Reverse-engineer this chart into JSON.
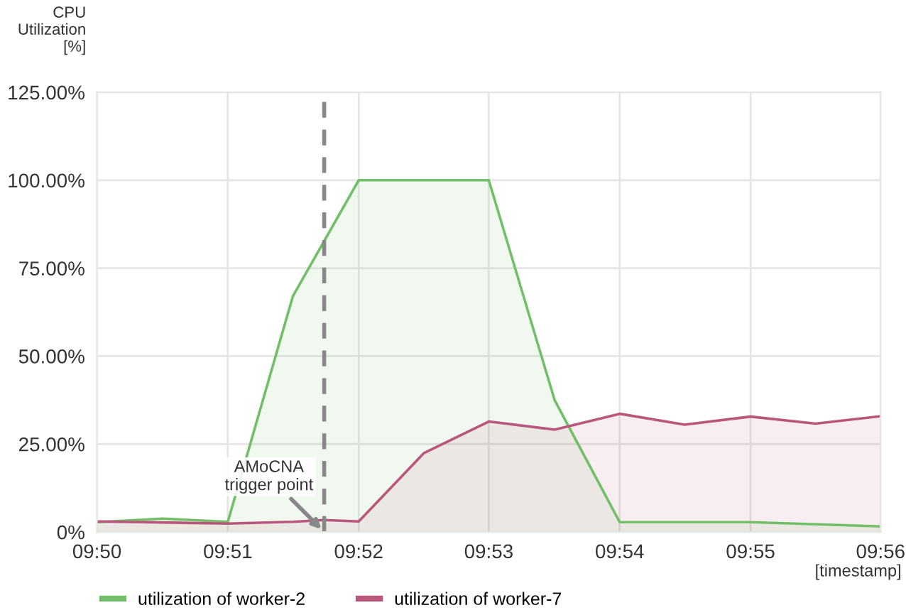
{
  "chart_data": {
    "type": "area",
    "ylabel": "CPU\nUtilization\n[%]",
    "xlabel": "[timestamp]",
    "xlim": [
      9.8333,
      9.9333
    ],
    "xticks": [
      {
        "value": 9.8333,
        "label": "09:50"
      },
      {
        "value": 9.85,
        "label": "09:51"
      },
      {
        "value": 9.8667,
        "label": "09:52"
      },
      {
        "value": 9.8833,
        "label": "09:53"
      },
      {
        "value": 9.9,
        "label": "09:54"
      },
      {
        "value": 9.9167,
        "label": "09:55"
      },
      {
        "value": 9.9333,
        "label": "09:56"
      }
    ],
    "ylim": [
      0,
      125
    ],
    "yticks": [
      {
        "value": 0,
        "label": "0%"
      },
      {
        "value": 25,
        "label": "25.00%"
      },
      {
        "value": 50,
        "label": "50.00%"
      },
      {
        "value": 75,
        "label": "75.00%"
      },
      {
        "value": 100,
        "label": "100.00%"
      },
      {
        "value": 125,
        "label": "125.00%"
      }
    ],
    "grid": true,
    "legend": "bottom",
    "series": [
      {
        "name": "utilization of worker-2",
        "color": "#73bf69",
        "x": [
          9.8333,
          9.8417,
          9.85,
          9.8583,
          9.8667,
          9.8833,
          9.8917,
          9.9,
          9.9167,
          9.9333
        ],
        "values": [
          2.8,
          3.8,
          2.9,
          67,
          100,
          100,
          37.5,
          2.8,
          2.8,
          1.6
        ]
      },
      {
        "name": "utilization of worker-7",
        "color": "#b8577a",
        "x": [
          9.8333,
          9.85,
          9.8583,
          9.8623,
          9.8667,
          9.875,
          9.8833,
          9.8917,
          9.9,
          9.9083,
          9.9167,
          9.925,
          9.9333
        ],
        "values": [
          3.0,
          2.4,
          2.9,
          3.4,
          3.0,
          22.4,
          31.4,
          29.1,
          33.6,
          30.5,
          32.8,
          30.8,
          32.9
        ]
      }
    ],
    "ref_lines": [
      {
        "axis": "x",
        "value": 9.8623,
        "color": "#888888",
        "line_style": "dashed"
      }
    ],
    "annotations": [
      {
        "text": "AMoCNA\ntrigger point",
        "x": 9.8623,
        "y": 0
      }
    ]
  }
}
